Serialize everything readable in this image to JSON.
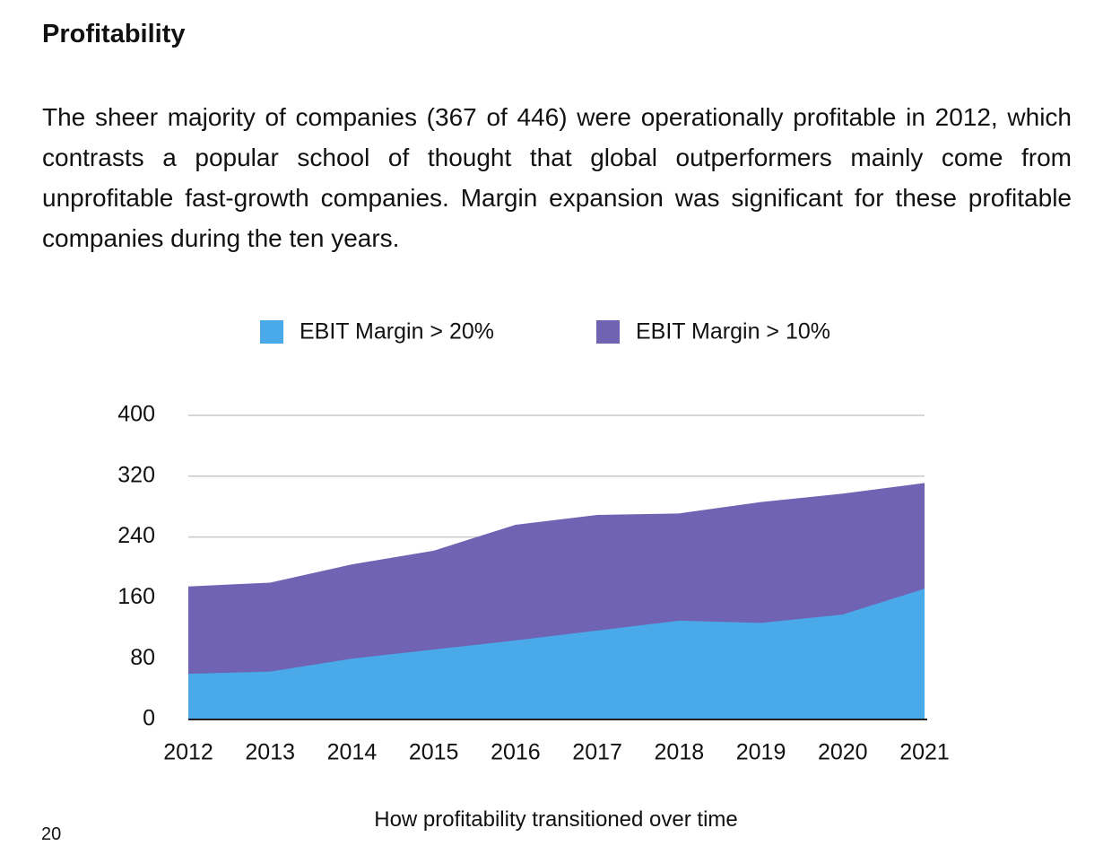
{
  "heading": "Profitability",
  "paragraph": "The sheer majority of companies (367 of 446) were operationally profitable in 2012, which contrasts a popular school of thought that global outperformers mainly come from unprofitable fast-growth companies. Margin expansion was significant for these profitable companies during the ten years.",
  "chart_data": {
    "type": "area",
    "categories": [
      "2012",
      "2013",
      "2014",
      "2015",
      "2016",
      "2017",
      "2018",
      "2019",
      "2020",
      "2021"
    ],
    "series": [
      {
        "name": "EBIT Margin > 20%",
        "color": "#4aa9e8",
        "values": [
          60,
          63,
          80,
          92,
          104,
          117,
          130,
          127,
          138,
          172
        ]
      },
      {
        "name": "EBIT Margin > 10%",
        "color": "#7063b3",
        "values": [
          175,
          180,
          204,
          222,
          256,
          269,
          271,
          286,
          297,
          311
        ]
      }
    ],
    "ylim": [
      0,
      400
    ],
    "yticks": [
      0,
      80,
      160,
      240,
      320,
      400
    ],
    "grid": true,
    "legend": "top"
  },
  "caption": "How profitability transitioned over time",
  "page_number": "20"
}
